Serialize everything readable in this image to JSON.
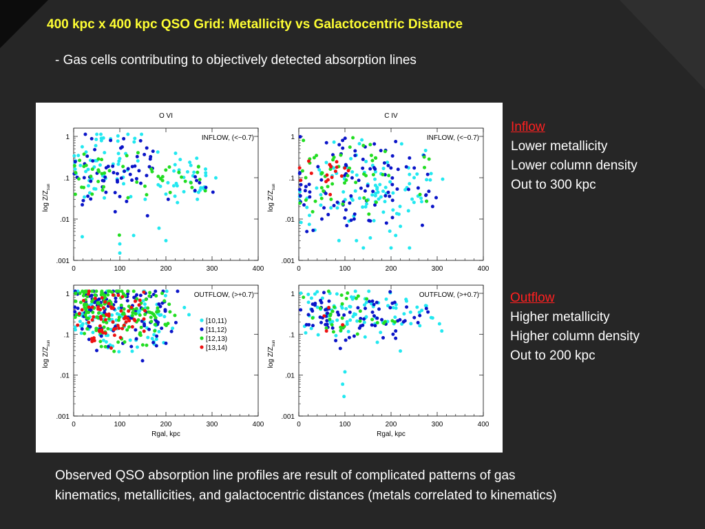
{
  "slide": {
    "title": "400 kpc x 400 kpc QSO Grid: Metallicity vs Galactocentric Distance",
    "subtitle": "- Gas cells contributing to objectively detected absorption lines",
    "caption_line1": "Observed QSO absorption line profiles are result of complicated patterns of gas",
    "caption_line2": "kinematics, metallicities, and galactocentric distances (metals correlated to kinematics)"
  },
  "notes": {
    "inflow": {
      "heading": "Inflow",
      "line1": "Lower  metallicity",
      "line2": "Lower column density",
      "line3": "Out to 300 kpc"
    },
    "outflow": {
      "heading": "Outflow",
      "line1": "Higher  metallicity",
      "line2": "Higher column density",
      "line3": "Out to 200 kpc"
    }
  },
  "colors": {
    "background": "#262626",
    "title": "#ffff33",
    "note_heading": "#ff2020",
    "series": [
      "#22e8f0",
      "#0a14c8",
      "#22dd22",
      "#ee1111"
    ]
  },
  "chart_data": {
    "type": "scatter",
    "grid": false,
    "xlabel": "Rgal, kpc",
    "ylabel": "log Z/Z",
    "ylabel_sub": "sun",
    "xlim": [
      0,
      400
    ],
    "ylim_log10": [
      -3,
      0.2
    ],
    "xticks": [
      "0",
      "100",
      "200",
      "300",
      "400"
    ],
    "yticks": [
      "1",
      ".1",
      ".01",
      ".001"
    ],
    "columns": [
      "O VI",
      "C IV"
    ],
    "legend": {
      "placement": "right of upper-left outflow panel",
      "entries": [
        "[10,11)",
        "[11,12)",
        "[12,13)",
        "[13,14)"
      ]
    },
    "panels": [
      {
        "ion": "O VI",
        "flow": "INFLOW, (<−0.7)",
        "series": [
          {
            "name": "[10,11)",
            "clouds": [
              [
                25,
                0.18,
                30,
                0.55,
                0.35
              ],
              [
                60,
                0.25,
                18,
                0.55,
                0.3
              ],
              [
                120,
                0.22,
                18,
                0.5,
                0.3
              ],
              [
                210,
                0.14,
                35,
                0.35,
                0.2
              ],
              [
                250,
                0.1,
                25,
                0.3,
                0.25
              ],
              [
                280,
                0.08,
                20,
                0.25,
                0.15
              ]
            ],
            "extra": [
              [
                100,
                0.0015
              ],
              [
                100,
                0.0025
              ],
              [
                130,
                0.004
              ],
              [
                185,
                0.006
              ],
              [
                200,
                0.003
              ],
              [
                60,
                0.9
              ],
              [
                225,
                0.025
              ],
              [
                200,
                0.04
              ],
              [
                155,
                0.03
              ]
            ]
          },
          {
            "name": "[11,12)",
            "clouds": [
              [
                30,
                0.15,
                25,
                0.45,
                0.3
              ],
              [
                70,
                0.2,
                20,
                0.45,
                0.25
              ],
              [
                125,
                0.18,
                20,
                0.45,
                0.25
              ],
              [
                160,
                0.25,
                15,
                0.35,
                0.1
              ],
              [
                280,
                0.06,
                15,
                0.2,
                0.1
              ]
            ],
            "extra": [
              [
                100,
                0.035
              ],
              [
                90,
                0.015
              ],
              [
                160,
                0.012
              ],
              [
                205,
                0.03
              ],
              [
                80,
                0.8
              ]
            ]
          },
          {
            "name": "[12,13)",
            "clouds": [
              [
                25,
                0.12,
                20,
                0.35,
                0.2
              ],
              [
                60,
                0.15,
                20,
                0.35,
                0.15
              ],
              [
                130,
                0.12,
                20,
                0.35,
                0.12
              ],
              [
                185,
                0.14,
                20,
                0.25,
                0.1
              ],
              [
                230,
                0.09,
                25,
                0.25,
                0.15
              ],
              [
                270,
                0.07,
                20,
                0.2,
                0.08
              ]
            ],
            "extra": [
              [
                40,
                0.04
              ],
              [
                65,
                0.06
              ]
            ]
          },
          {
            "name": "[13,14)",
            "clouds": [],
            "extra": []
          }
        ]
      },
      {
        "ion": "C IV",
        "flow": "INFLOW, (<−0.7)",
        "series": [
          {
            "name": "[10,11)",
            "clouds": [
              [
                45,
                0.045,
                35,
                0.5,
                0.3
              ],
              [
                110,
                0.035,
                35,
                0.55,
                0.4
              ],
              [
                175,
                0.045,
                35,
                0.5,
                0.4
              ],
              [
                240,
                0.04,
                30,
                0.5,
                0.25
              ],
              [
                145,
                0.15,
                40,
                0.4,
                0.2
              ],
              [
                270,
                0.09,
                20,
                0.35,
                0.1
              ]
            ],
            "extra": [
              [
                140,
                0.002
              ],
              [
                155,
                0.0035
              ],
              [
                125,
                0.003
              ],
              [
                200,
                0.002
              ],
              [
                210,
                0.004
              ],
              [
                240,
                0.002
              ],
              [
                240,
                0.12
              ],
              [
                250,
                0.1
              ]
            ]
          },
          {
            "name": "[11,12)",
            "clouds": [
              [
                40,
                0.055,
                30,
                0.45,
                0.3
              ],
              [
                100,
                0.06,
                35,
                0.5,
                0.35
              ],
              [
                165,
                0.06,
                35,
                0.5,
                0.35
              ],
              [
                230,
                0.05,
                35,
                0.45,
                0.2
              ],
              [
                100,
                0.3,
                40,
                0.35,
                0.12
              ],
              [
                200,
                0.25,
                30,
                0.35,
                0.1
              ],
              [
                290,
                0.05,
                10,
                0.25,
                0.07
              ]
            ],
            "extra": [
              [
                50,
                0.01
              ],
              [
                120,
                0.01
              ],
              [
                155,
                0.009
              ],
              [
                190,
                0.008
              ],
              [
                95,
                0.8
              ],
              [
                60,
                0.7
              ],
              [
                210,
                0.75
              ],
              [
                240,
                0.3
              ]
            ]
          },
          {
            "name": "[12,13)",
            "clouds": [
              [
                50,
                0.08,
                35,
                0.4,
                0.3
              ],
              [
                120,
                0.15,
                30,
                0.35,
                0.2
              ],
              [
                90,
                0.4,
                25,
                0.3,
                0.1
              ],
              [
                180,
                0.1,
                30,
                0.35,
                0.15
              ],
              [
                250,
                0.09,
                15,
                0.25,
                0.08
              ]
            ],
            "extra": [
              [
                10,
                0.8
              ],
              [
                140,
                0.6
              ],
              [
                70,
                0.03
              ],
              [
                30,
                0.015
              ]
            ]
          },
          {
            "name": "[13,14)",
            "clouds": [
              [
                35,
                0.12,
                20,
                0.2,
                0.1
              ],
              [
                60,
                0.1,
                15,
                0.25,
                0.1
              ],
              [
                90,
                0.15,
                15,
                0.2,
                0.08
              ]
            ],
            "extra": []
          }
        ]
      },
      {
        "ion": "O VI",
        "flow": "OUTFLOW, (>+0.7)",
        "series": [
          {
            "name": "[10,11)",
            "clouds": [
              [
                25,
                0.25,
                20,
                0.4,
                0.35
              ],
              [
                60,
                0.25,
                25,
                0.4,
                0.45
              ],
              [
                110,
                0.25,
                25,
                0.4,
                0.4
              ],
              [
                160,
                0.2,
                20,
                0.4,
                0.35
              ],
              [
                190,
                0.18,
                12,
                0.35,
                0.15
              ]
            ],
            "extra": [
              [
                240,
                0.45
              ],
              [
                250,
                0.3
              ]
            ]
          },
          {
            "name": "[11,12)",
            "clouds": [
              [
                20,
                0.4,
                15,
                0.35,
                0.3
              ],
              [
                55,
                0.45,
                20,
                0.4,
                0.4
              ],
              [
                100,
                0.4,
                25,
                0.4,
                0.4
              ],
              [
                150,
                0.35,
                25,
                0.4,
                0.4
              ],
              [
                185,
                0.25,
                12,
                0.35,
                0.2
              ],
              [
                200,
                0.15,
                10,
                0.25,
                0.1
              ]
            ],
            "extra": [
              [
                50,
                0.04
              ],
              [
                75,
                0.05
              ],
              [
                125,
                0.05
              ],
              [
                200,
                0.06
              ],
              [
                180,
                0.09
              ],
              [
                60,
                0.09
              ]
            ]
          },
          {
            "name": "[12,13)",
            "clouds": [
              [
                20,
                0.5,
                15,
                0.3,
                0.45
              ],
              [
                55,
                0.45,
                20,
                0.35,
                0.6
              ],
              [
                100,
                0.4,
                25,
                0.35,
                0.6
              ],
              [
                150,
                0.35,
                25,
                0.35,
                0.5
              ],
              [
                190,
                0.3,
                15,
                0.3,
                0.2
              ],
              [
                80,
                0.12,
                30,
                0.25,
                0.2
              ]
            ],
            "extra": [
              [
                60,
                0.05
              ]
            ]
          },
          {
            "name": "[13,14)",
            "clouds": [
              [
                50,
                0.35,
                25,
                0.35,
                0.5
              ],
              [
                95,
                0.3,
                20,
                0.3,
                0.4
              ],
              [
                140,
                0.35,
                20,
                0.3,
                0.2
              ],
              [
                65,
                0.15,
                15,
                0.25,
                0.1
              ]
            ],
            "extra": []
          }
        ]
      },
      {
        "ion": "C IV",
        "flow": "OUTFLOW, (>+0.7)",
        "series": [
          {
            "name": "[10,11)",
            "clouds": [
              [
                35,
                0.4,
                25,
                0.35,
                0.3
              ],
              [
                85,
                0.35,
                30,
                0.35,
                0.35
              ],
              [
                140,
                0.35,
                30,
                0.35,
                0.35
              ],
              [
                195,
                0.3,
                25,
                0.35,
                0.3
              ],
              [
                250,
                0.3,
                20,
                0.3,
                0.15
              ]
            ],
            "extra": [
              [
                290,
                0.25
              ],
              [
                305,
                0.18
              ],
              [
                310,
                0.12
              ],
              [
                275,
                0.5
              ],
              [
                120,
                0.8
              ],
              [
                100,
                0.012
              ],
              [
                95,
                0.006
              ],
              [
                98,
                0.003
              ]
            ]
          },
          {
            "name": "[11,12)",
            "clouds": [
              [
                35,
                0.3,
                20,
                0.3,
                0.3
              ],
              [
                90,
                0.25,
                30,
                0.3,
                0.3
              ],
              [
                150,
                0.25,
                30,
                0.3,
                0.3
              ],
              [
                210,
                0.22,
                25,
                0.35,
                0.2
              ],
              [
                270,
                0.3,
                12,
                0.2,
                0.06
              ]
            ],
            "extra": [
              [
                80,
                0.07
              ],
              [
                90,
                0.045
              ],
              [
                120,
                0.09
              ],
              [
                210,
                0.12
              ],
              [
                280,
                0.35
              ]
            ]
          },
          {
            "name": "[12,13)",
            "clouds": [
              [
                80,
                0.35,
                25,
                0.3,
                0.25
              ],
              [
                130,
                0.35,
                25,
                0.3,
                0.2
              ],
              [
                200,
                0.3,
                15,
                0.25,
                0.06
              ]
            ],
            "extra": [
              [
                10,
                0.8
              ],
              [
                30,
                0.25
              ]
            ]
          },
          {
            "name": "[13,14)",
            "clouds": [],
            "extra": [
              [
                55,
                0.28
              ],
              [
                95,
                0.17
              ],
              [
                65,
                0.45
              ],
              [
                60,
                0.12
              ]
            ]
          }
        ]
      }
    ]
  }
}
